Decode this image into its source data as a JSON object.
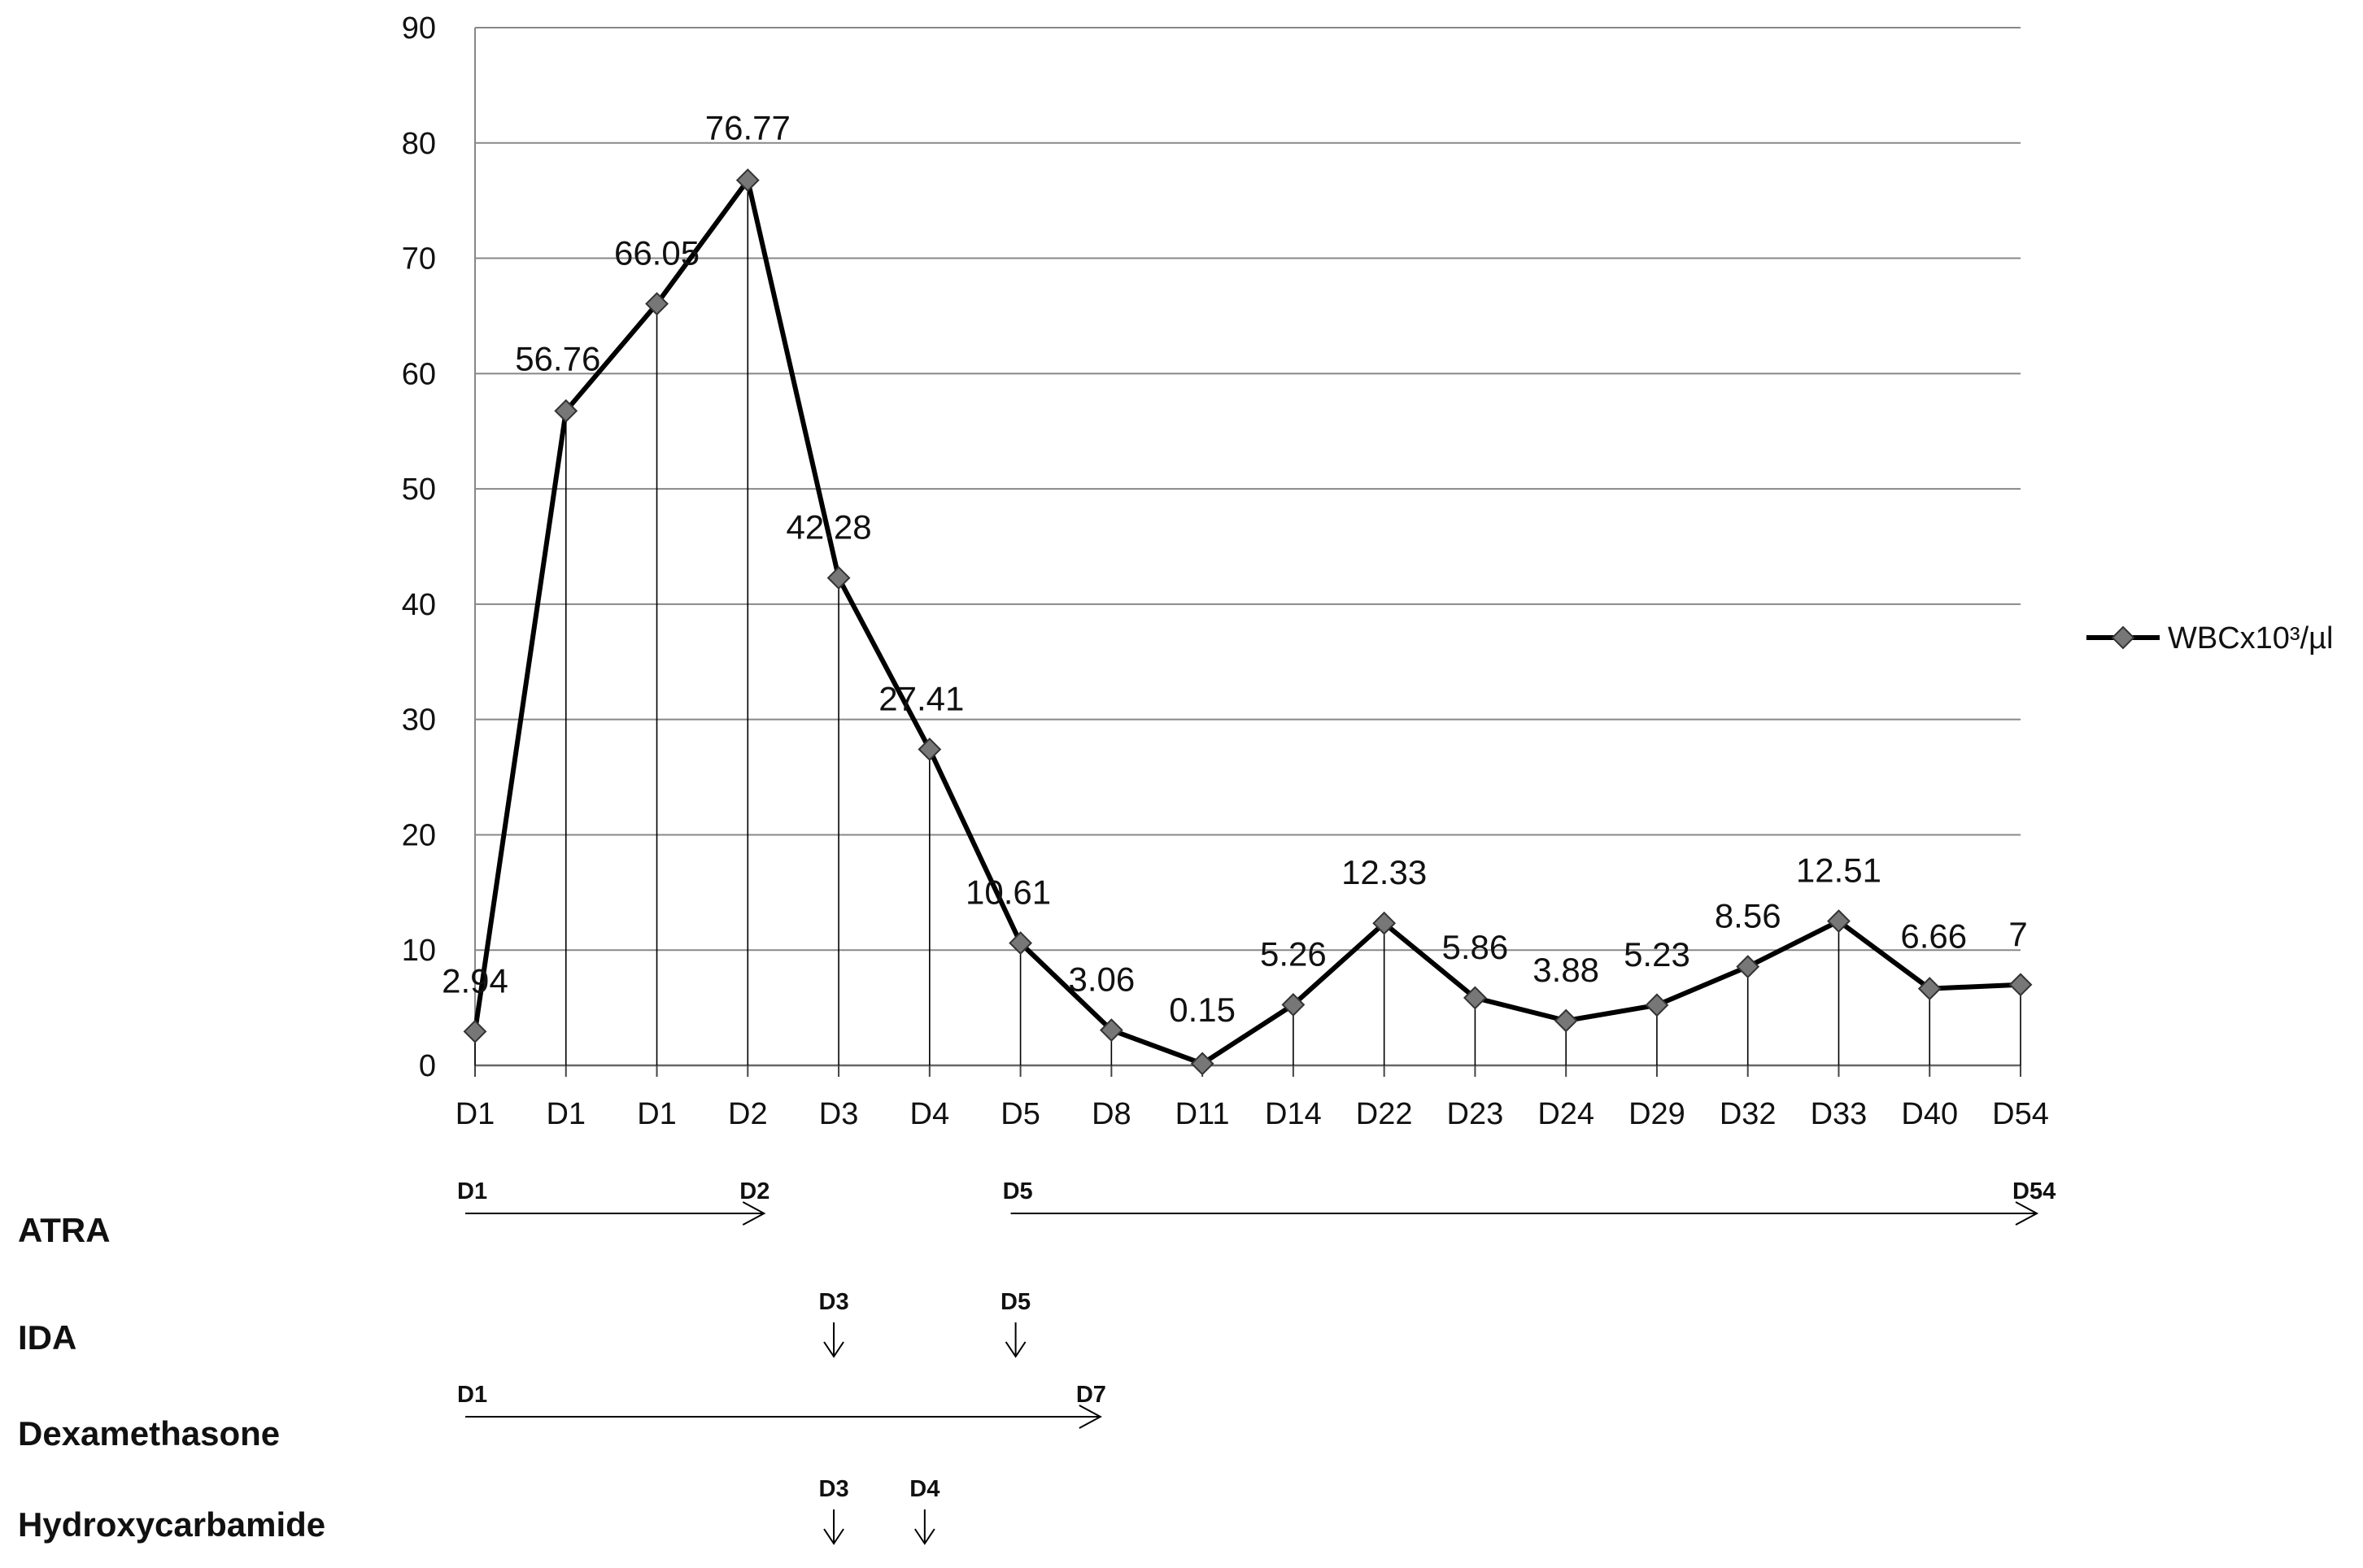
{
  "chart_data": {
    "type": "line",
    "categories": [
      "D1",
      "D1",
      "D1",
      "D2",
      "D3",
      "D4",
      "D5",
      "D8",
      "D11",
      "D14",
      "D22",
      "D23",
      "D24",
      "D29",
      "D32",
      "D33",
      "D40",
      "D54"
    ],
    "series": [
      {
        "name": "WBCx10³/µl",
        "values": [
          2.94,
          56.76,
          66.05,
          76.77,
          42.28,
          27.41,
          10.61,
          3.06,
          0.15,
          5.26,
          12.33,
          5.86,
          3.88,
          5.23,
          8.56,
          12.51,
          6.66,
          7
        ],
        "labels": [
          "2.94",
          "56.76",
          "66.05",
          "76.77",
          "42.28",
          "27.41",
          "10.61",
          "3.06",
          "0.15",
          "5.26",
          "12.33",
          "5.86",
          "3.88",
          "5.23",
          "8.56",
          "12.51",
          "6.66",
          "7"
        ]
      }
    ],
    "yticks": [
      "0",
      "10",
      "20",
      "30",
      "40",
      "50",
      "60",
      "70",
      "80",
      "90"
    ],
    "ylim": [
      0,
      90
    ],
    "grid": true,
    "drop_lines": true,
    "marker": "diamond",
    "legend": {
      "position": "right",
      "label": "WBCx10³/µl"
    },
    "title": "",
    "xlabel": "",
    "ylabel": ""
  },
  "treatments": [
    {
      "name": "ATRA",
      "type": "arrows",
      "items": [
        {
          "start": "D1",
          "end": "D2",
          "start_pos": 0,
          "end_pos": 3
        },
        {
          "start": "D5",
          "end": "D54",
          "start_pos": 6,
          "end_pos": 17
        }
      ]
    },
    {
      "name": "IDA",
      "type": "doses",
      "items": [
        {
          "day": "D3",
          "pos": 4
        },
        {
          "day": "D5",
          "pos": 6
        }
      ]
    },
    {
      "name": "Dexamethasone",
      "type": "arrows",
      "items": [
        {
          "start": "D1",
          "end": "D7",
          "start_pos": 0,
          "end_pos": 6.7
        }
      ]
    },
    {
      "name": "Hydroxycarbamide",
      "type": "doses",
      "items": [
        {
          "day": "D3",
          "pos": 4
        },
        {
          "day": "D4",
          "pos": 5
        }
      ]
    }
  ],
  "colors": {
    "line": "#000000",
    "marker": "#777777",
    "grid": "#888888"
  }
}
